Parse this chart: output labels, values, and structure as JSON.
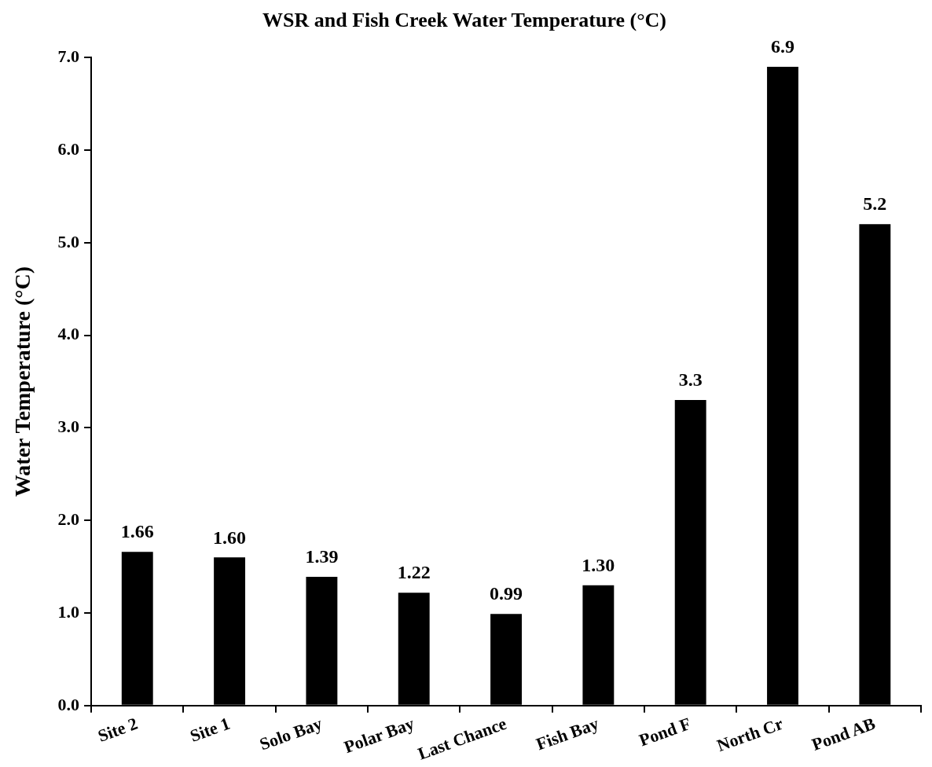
{
  "chart_data": {
    "type": "bar",
    "title": "WSR and Fish Creek Water Temperature (°C)",
    "ylabel": "Water Temperature (°C)",
    "categories": [
      "Site 2",
      "Site 1",
      "Solo Bay",
      "Polar Bay",
      "Last Chance",
      "Fish Bay",
      "Pond F",
      "North Cr",
      "Pond AB"
    ],
    "values": [
      1.66,
      1.6,
      1.39,
      1.22,
      0.99,
      1.3,
      3.3,
      6.9,
      5.2
    ],
    "value_labels": [
      "1.66",
      "1.60",
      "1.39",
      "1.22",
      "0.99",
      "1.30",
      "3.3",
      "6.9",
      "5.2"
    ],
    "color": "#000000",
    "ylim": [
      0,
      7
    ],
    "yticks": [
      {
        "value": 0,
        "label": "0.0"
      },
      {
        "value": 1,
        "label": "1.0"
      },
      {
        "value": 2,
        "label": "2.0"
      },
      {
        "value": 3,
        "label": "3.0"
      },
      {
        "value": 4,
        "label": "4.0"
      },
      {
        "value": 5,
        "label": "5.0"
      },
      {
        "value": 6,
        "label": "6.0"
      },
      {
        "value": 7,
        "label": "7.0"
      }
    ],
    "grid": false,
    "legend": false
  }
}
